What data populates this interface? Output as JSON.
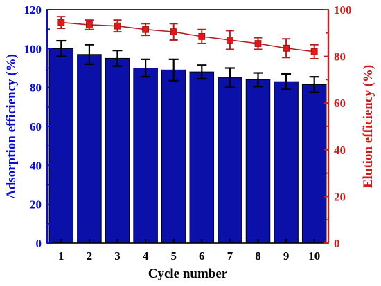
{
  "chart_data": {
    "type": "bar",
    "categories": [
      "1",
      "2",
      "3",
      "4",
      "5",
      "6",
      "7",
      "8",
      "9",
      "10"
    ],
    "xlabel": "Cycle number",
    "ylabel_left": "Adsorption efficiency (%)",
    "ylabel_right": "Elution efficiency (%)",
    "ylim_left": [
      0,
      120
    ],
    "yticks_left": [
      0,
      20,
      40,
      60,
      80,
      100,
      120
    ],
    "ylim_right": [
      0,
      100
    ],
    "yticks_right": [
      0,
      20,
      40,
      60,
      80,
      100
    ],
    "grid": false,
    "series": [
      {
        "type": "bar",
        "axis": "left",
        "values": [
          100,
          97,
          95,
          90,
          89,
          88,
          85,
          84,
          83,
          81.5
        ],
        "errors": [
          4,
          5,
          4,
          4.5,
          5.5,
          3.5,
          5,
          3.5,
          4,
          4
        ],
        "color": "#0a10a8"
      },
      {
        "type": "line",
        "axis": "right",
        "values": [
          94.5,
          93.5,
          93,
          91.5,
          90.5,
          88.5,
          87,
          85.5,
          83.5,
          82
        ],
        "errors": [
          2.5,
          2,
          2.5,
          2.5,
          3.5,
          3,
          4,
          2.5,
          4,
          3
        ],
        "color": "#cc2020",
        "marker": "square"
      }
    ],
    "colors": {
      "left_axis": "#0a10c8",
      "right_axis": "#c81e1e",
      "bar_fill": "#0a10a8",
      "bar_edge": "#000000",
      "error_bar_left": "#000000",
      "line": "#b02020",
      "marker": "#e01818"
    }
  }
}
